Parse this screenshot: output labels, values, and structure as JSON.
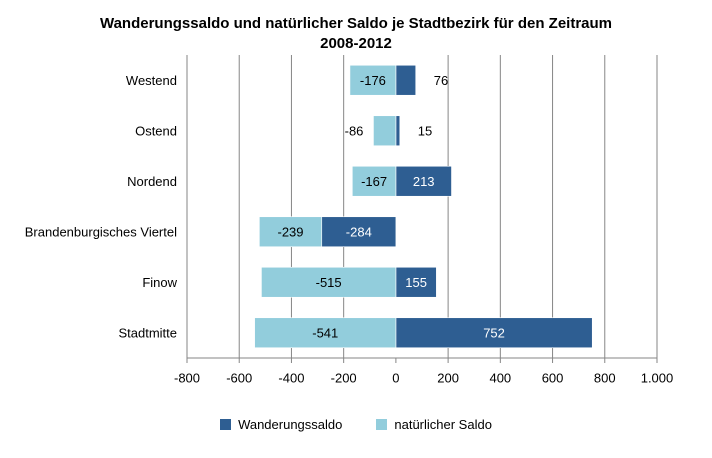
{
  "chart_data": {
    "type": "bar",
    "orientation": "horizontal",
    "stacked": true,
    "title_lines": [
      "Wanderungssaldo und natürlicher Saldo je Stadtbezirk für den Zeitraum",
      "2008-2012"
    ],
    "categories": [
      "Westend",
      "Ostend",
      "Nordend",
      "Brandenburgisches Viertel",
      "Finow",
      "Stadtmitte"
    ],
    "series": [
      {
        "name": "Wanderungssaldo",
        "color": "#2e5e92",
        "values": [
          76,
          15,
          213,
          -284,
          155,
          752
        ]
      },
      {
        "name": "natürlicher Saldo",
        "color": "#92cddc",
        "values": [
          -176,
          -86,
          -167,
          -239,
          -515,
          -541
        ]
      }
    ],
    "data_labels": {
      "Wanderungssaldo": [
        "76",
        "15",
        "213",
        "-284",
        "155",
        "752"
      ],
      "natürlicher Saldo": [
        "-176",
        "-86",
        "-167",
        "-239",
        "-515",
        "-541"
      ]
    },
    "xlim": [
      -800,
      1000
    ],
    "xticks": [
      -800,
      -600,
      -400,
      -200,
      0,
      200,
      400,
      600,
      800,
      1000
    ],
    "xtick_labels": [
      "-800",
      "-600",
      "-400",
      "-200",
      "0",
      "200",
      "400",
      "600",
      "800",
      "1.000"
    ],
    "grid": "vertical",
    "legend_position": "bottom"
  }
}
